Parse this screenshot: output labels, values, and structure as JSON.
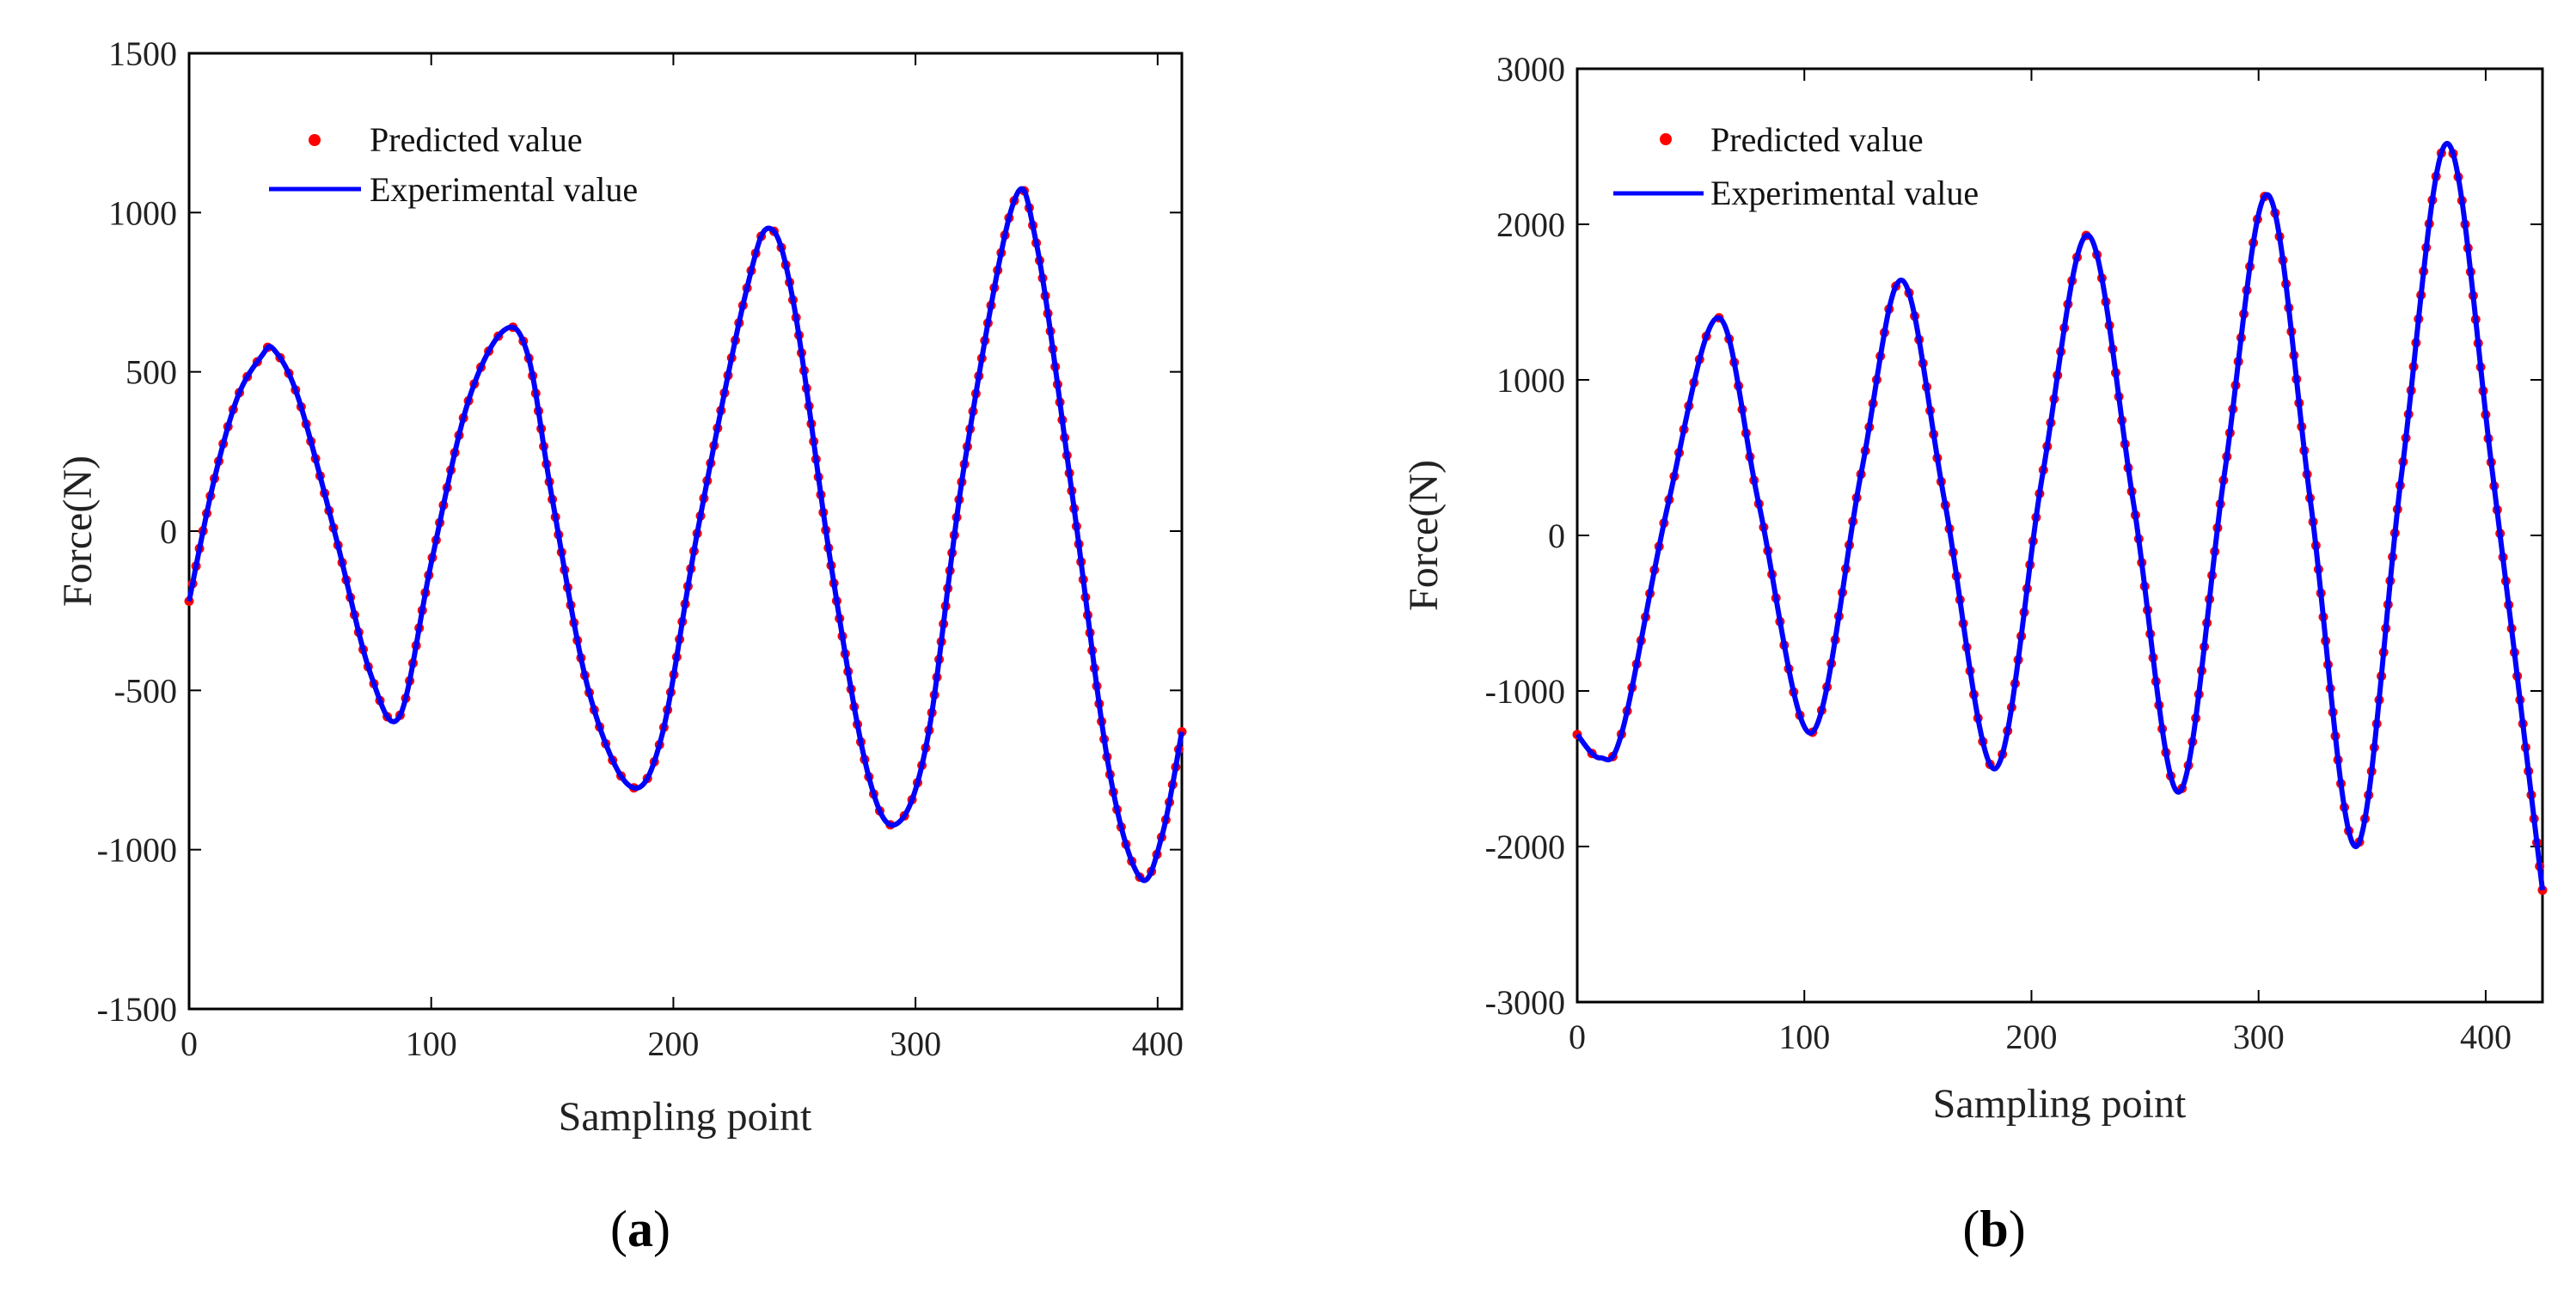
{
  "chart_data": [
    {
      "type": "line",
      "panel": "a",
      "caption": "a",
      "xlabel": "Sampling point",
      "ylabel": "Force(N)",
      "xlim": [
        0,
        410
      ],
      "ylim": [
        -1500,
        1500
      ],
      "xticks": [
        0,
        100,
        200,
        300,
        400
      ],
      "yticks": [
        -1500,
        -1000,
        -500,
        0,
        500,
        1000,
        1500
      ],
      "grid": false,
      "legend_position": "top-left",
      "colors": {
        "predicted": "#ff0000",
        "experimental": "#0000ff"
      },
      "series": [
        {
          "name": "Experimental value",
          "style": "line",
          "x": [
            0,
            10,
            20,
            30,
            35,
            45,
            60,
            75,
            87,
            100,
            115,
            130,
            140,
            150,
            165,
            182,
            195,
            210,
            230,
            240,
            250,
            265,
            280,
            292,
            305,
            320,
            340,
            350,
            365,
            380,
            393,
            402,
            410
          ],
          "y": [
            -220,
            150,
            420,
            550,
            570,
            420,
            0,
            -450,
            -580,
            -100,
            400,
            630,
            550,
            100,
            -500,
            -800,
            -650,
            0,
            750,
            950,
            700,
            -100,
            -750,
            -920,
            -650,
            200,
            1020,
            900,
            100,
            -750,
            -1090,
            -950,
            -630
          ]
        },
        {
          "name": "Predicted value",
          "style": "markers",
          "x": [
            0,
            10,
            20,
            30,
            35,
            45,
            60,
            75,
            87,
            100,
            115,
            130,
            140,
            150,
            165,
            182,
            195,
            210,
            230,
            240,
            250,
            265,
            280,
            292,
            305,
            320,
            340,
            350,
            365,
            380,
            393,
            402,
            410
          ],
          "y": [
            -220,
            150,
            420,
            550,
            570,
            420,
            0,
            -450,
            -580,
            -100,
            400,
            630,
            550,
            100,
            -500,
            -800,
            -650,
            0,
            750,
            950,
            700,
            -100,
            -750,
            -920,
            -650,
            200,
            1020,
            900,
            100,
            -750,
            -1090,
            -950,
            -630
          ]
        }
      ]
    },
    {
      "type": "line",
      "panel": "b",
      "caption": "b",
      "xlabel": "Sampling point",
      "ylabel": "Force(N)",
      "xlim": [
        0,
        425
      ],
      "ylim": [
        -3000,
        3000
      ],
      "xticks": [
        0,
        100,
        200,
        300,
        400
      ],
      "yticks": [
        -3000,
        -2000,
        -1000,
        0,
        1000,
        2000,
        3000
      ],
      "grid": false,
      "legend_position": "top-left",
      "colors": {
        "predicted": "#ff0000",
        "experimental": "#0000ff"
      },
      "series": [
        {
          "name": "Experimental value",
          "style": "line",
          "x": [
            0,
            10,
            20,
            40,
            62,
            80,
            103,
            125,
            143,
            162,
            184,
            205,
            225,
            245,
            265,
            285,
            304,
            323,
            343,
            363,
            383,
            403,
            425
          ],
          "y": [
            -1280,
            -1430,
            -1250,
            200,
            1400,
            200,
            -1270,
            400,
            1640,
            200,
            -1500,
            400,
            1930,
            200,
            -1650,
            400,
            2190,
            200,
            -2000,
            400,
            2520,
            400,
            -2280
          ]
        },
        {
          "name": "Predicted value",
          "style": "markers",
          "x": [
            0,
            10,
            20,
            40,
            62,
            80,
            103,
            125,
            143,
            162,
            184,
            205,
            225,
            245,
            265,
            285,
            304,
            323,
            343,
            363,
            383,
            403,
            425
          ],
          "y": [
            -1280,
            -1430,
            -1250,
            200,
            1400,
            200,
            -1270,
            400,
            1640,
            200,
            -1500,
            400,
            1930,
            200,
            -1650,
            400,
            2190,
            200,
            -2000,
            400,
            2520,
            400,
            -2280
          ]
        }
      ]
    }
  ]
}
